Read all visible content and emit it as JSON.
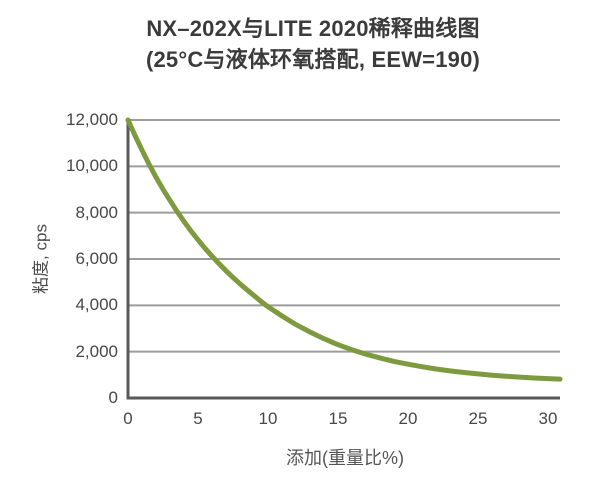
{
  "chart_data": {
    "type": "line",
    "title": "NX–202X与LITE 2020稀释曲线图",
    "subtitle": "(25°C与液体环氧搭配, EEW=190)",
    "xlabel": "添加(重量比%)",
    "ylabel": "粘度, cps",
    "xlim": [
      0,
      30.86
    ],
    "ylim": [
      0,
      12000
    ],
    "grid": "horizontal",
    "legend": "none",
    "x_ticks": [
      {
        "value": 0,
        "label": "0"
      },
      {
        "value": 5,
        "label": "5"
      },
      {
        "value": 10,
        "label": "10"
      },
      {
        "value": 15,
        "label": "15"
      },
      {
        "value": 20,
        "label": "20"
      },
      {
        "value": 25,
        "label": "25"
      },
      {
        "value": 30,
        "label": "30"
      }
    ],
    "y_ticks": [
      {
        "value": 0,
        "label": "0"
      },
      {
        "value": 2000,
        "label": "2,000"
      },
      {
        "value": 4000,
        "label": "4,000"
      },
      {
        "value": 6000,
        "label": "6,000"
      },
      {
        "value": 8000,
        "label": "8,000"
      },
      {
        "value": 10000,
        "label": "10,000"
      },
      {
        "value": 12000,
        "label": "12,000"
      }
    ],
    "series": [
      {
        "name": "NX-202X / LITE 2020 稀释曲线",
        "color": "#7d9b3e",
        "points": [
          [
            0,
            12000
          ],
          [
            0.5,
            11330
          ],
          [
            1,
            10700
          ],
          [
            1.5,
            10090
          ],
          [
            2,
            9530
          ],
          [
            2.5,
            9010
          ],
          [
            3,
            8530
          ],
          [
            3.5,
            8060
          ],
          [
            4,
            7620
          ],
          [
            4.5,
            7210
          ],
          [
            5,
            6830
          ],
          [
            5.5,
            6460
          ],
          [
            6,
            6120
          ],
          [
            6.5,
            5800
          ],
          [
            7,
            5490
          ],
          [
            7.5,
            5200
          ],
          [
            8,
            4930
          ],
          [
            8.5,
            4670
          ],
          [
            9,
            4420
          ],
          [
            9.5,
            4170
          ],
          [
            10,
            3940
          ],
          [
            11,
            3540
          ],
          [
            12,
            3170
          ],
          [
            13,
            2850
          ],
          [
            14,
            2560
          ],
          [
            15,
            2300
          ],
          [
            16,
            2080
          ],
          [
            17,
            1890
          ],
          [
            18,
            1730
          ],
          [
            19,
            1580
          ],
          [
            20,
            1460
          ],
          [
            21,
            1350
          ],
          [
            22,
            1250
          ],
          [
            23,
            1170
          ],
          [
            24,
            1100
          ],
          [
            25,
            1040
          ],
          [
            26,
            985
          ],
          [
            27,
            940
          ],
          [
            28,
            900
          ],
          [
            29,
            865
          ],
          [
            30,
            838
          ],
          [
            30.86,
            815
          ]
        ]
      }
    ],
    "colors": {
      "curve": "#7d9b3e",
      "grid": "#9c9c9c",
      "axis": "#58595b",
      "title_text": "#3b3b3b",
      "tick_text": "#474747",
      "background": "#ffffff"
    }
  }
}
